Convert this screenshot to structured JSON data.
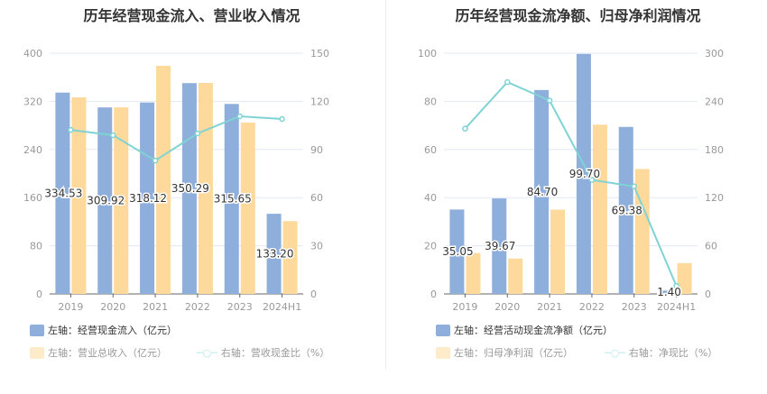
{
  "colors": {
    "blue": "#8eaedb",
    "yellow": "#fdd99b",
    "teal": "#7fd3d5",
    "grid": "#e3e8f3",
    "axis": "#999"
  },
  "chart_data": [
    {
      "type": "bar",
      "title": "历年经营现金流入、营业收入情况",
      "categories": [
        "2019",
        "2020",
        "2021",
        "2022",
        "2023",
        "2024H1"
      ],
      "ylim": [
        0,
        400
      ],
      "yticks": [
        "0",
        "80",
        "160",
        "240",
        "320",
        "400"
      ],
      "y2lim": [
        0,
        150
      ],
      "y2ticks": [
        "0",
        "30",
        "60",
        "90",
        "120",
        "150"
      ],
      "series": [
        {
          "name": "左轴：经营现金流入（亿元）",
          "axis": "left",
          "type": "bar",
          "values": [
            334.53,
            309.92,
            318.12,
            350.29,
            315.65,
            133.2
          ],
          "labels": [
            "334.53",
            "309.92",
            "318.12",
            "350.29",
            "315.65",
            "133.20"
          ]
        },
        {
          "name": "左轴：营业总收入（亿元）",
          "axis": "left",
          "type": "bar",
          "values": [
            326.6,
            310,
            379,
            350.6,
            284.6,
            121
          ]
        },
        {
          "name": "右轴：营收现金比（%）",
          "axis": "right",
          "type": "line",
          "values": [
            102.2,
            98.9,
            83.1,
            100,
            110.7,
            109
          ]
        }
      ]
    },
    {
      "type": "bar",
      "title": "历年经营现金流净额、归母净利润情况",
      "categories": [
        "2019",
        "2020",
        "2021",
        "2022",
        "2023",
        "2024H1"
      ],
      "ylim": [
        0,
        100
      ],
      "yticks": [
        "0",
        "20",
        "40",
        "60",
        "80",
        "100"
      ],
      "y2lim": [
        0,
        300
      ],
      "y2ticks": [
        "0",
        "60",
        "120",
        "180",
        "240",
        "300"
      ],
      "series": [
        {
          "name": "左轴：经营活动现金流净额（亿元）",
          "axis": "left",
          "type": "bar",
          "values": [
            35.05,
            39.67,
            84.7,
            99.7,
            69.38,
            1.4
          ],
          "labels": [
            "35.05",
            "39.67",
            "84.70",
            "99.70",
            "69.38",
            "1.40"
          ]
        },
        {
          "name": "左轴：归母净利润（亿元）",
          "axis": "left",
          "type": "bar",
          "values": [
            17,
            14.7,
            35,
            70.3,
            51.9,
            12.8
          ]
        },
        {
          "name": "右轴：净现比（%）",
          "axis": "right",
          "type": "line",
          "values": [
            206,
            264,
            241,
            142,
            134,
            10
          ]
        }
      ]
    }
  ]
}
